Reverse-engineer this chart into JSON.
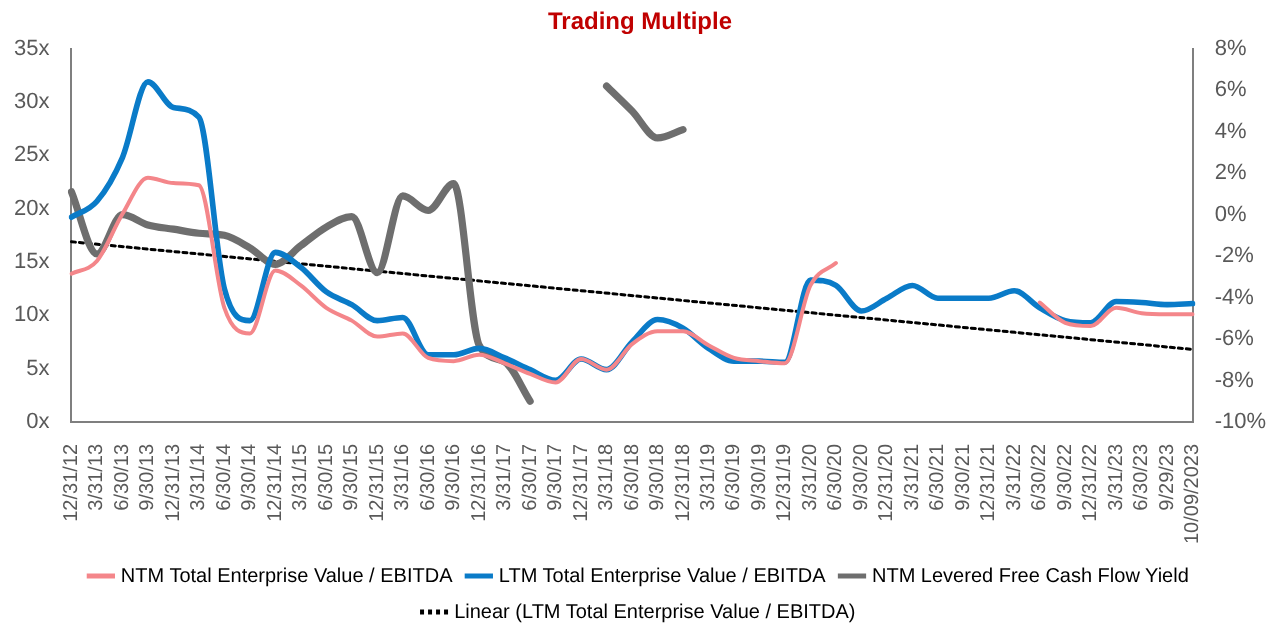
{
  "chart_data": {
    "type": "line",
    "title": "Trading Multiple",
    "categories": [
      "12/31/12",
      "3/31/13",
      "6/30/13",
      "9/30/13",
      "12/31/13",
      "3/31/14",
      "6/30/14",
      "9/30/14",
      "12/31/14",
      "3/31/15",
      "6/30/15",
      "9/30/15",
      "12/31/15",
      "3/31/16",
      "6/30/16",
      "9/30/16",
      "12/31/16",
      "3/31/17",
      "6/30/17",
      "9/30/17",
      "12/31/17",
      "3/31/18",
      "6/30/18",
      "9/30/18",
      "12/31/18",
      "3/31/19",
      "6/30/19",
      "9/30/19",
      "12/31/19",
      "3/31/20",
      "6/30/20",
      "9/30/20",
      "12/31/20",
      "3/31/21",
      "6/30/21",
      "9/30/21",
      "12/31/21",
      "3/31/22",
      "6/30/22",
      "9/30/22",
      "12/31/22",
      "3/31/23",
      "6/30/23",
      "9/29/23",
      "10/09/2023"
    ],
    "series": [
      {
        "name": "NTM Total Enterprise Value / EBITDA",
        "color": "#f4868a",
        "values": [
          13.9,
          15.1,
          19.5,
          22.9,
          22.4,
          22.2,
          10.7,
          8.3,
          14.2,
          12.8,
          10.7,
          9.5,
          8.0,
          8.3,
          6.0,
          5.7,
          6.3,
          5.5,
          4.5,
          3.7,
          5.9,
          4.9,
          7.3,
          8.5,
          8.5,
          7.2,
          6.0,
          5.7,
          5.5,
          12.8,
          14.9,
          null,
          null,
          null,
          null,
          null,
          null,
          null,
          11.2,
          9.3,
          9.0,
          10.7,
          10.2,
          10.1,
          10.1
        ]
      },
      {
        "name": "LTM Total Enterprise Value / EBITDA",
        "color": "#0a7bc8",
        "values": [
          19.2,
          20.7,
          24.8,
          31.9,
          29.5,
          28.6,
          12.5,
          9.5,
          15.9,
          14.5,
          12.2,
          11.0,
          9.5,
          9.8,
          6.3,
          6.3,
          6.9,
          6.0,
          4.9,
          3.9,
          5.9,
          4.9,
          7.5,
          9.6,
          8.8,
          6.9,
          5.7,
          5.7,
          5.6,
          13.3,
          12.8,
          10.4,
          11.6,
          12.8,
          11.6,
          11.6,
          11.6,
          12.3,
          10.7,
          9.5,
          9.3,
          11.3,
          11.2,
          11.0,
          11.1
        ]
      },
      {
        "name": "NTM Levered Free Cash Flow Yield",
        "color": "#6e6e6e",
        "axis": "y2",
        "values": [
          1.1,
          -1.9,
          0.0,
          -0.5,
          -0.7,
          -0.9,
          -1.0,
          -1.6,
          -2.4,
          -1.5,
          -0.6,
          -0.1,
          -2.8,
          0.9,
          0.2,
          1.5,
          -6.3,
          -7.1,
          -9.0,
          null,
          null,
          6.2,
          5.0,
          3.7,
          4.1,
          null,
          null,
          null,
          null,
          null,
          null,
          null,
          null,
          null,
          null,
          null,
          null,
          null,
          null,
          null,
          null,
          null,
          null,
          null,
          null
        ]
      },
      {
        "name": "Linear (LTM Total Enterprise Value / EBITDA)",
        "color": "#000000",
        "line_style": "dotted",
        "x": [
          "12/31/12",
          "10/09/2023"
        ],
        "values": [
          16.9,
          6.8
        ]
      }
    ],
    "ylim": [
      0,
      35
    ],
    "yticks": [
      {
        "value": 0,
        "label": "0x"
      },
      {
        "value": 5,
        "label": "5x"
      },
      {
        "value": 10,
        "label": "10x"
      },
      {
        "value": 15,
        "label": "15x"
      },
      {
        "value": 20,
        "label": "20x"
      },
      {
        "value": 25,
        "label": "25x"
      },
      {
        "value": 30,
        "label": "30x"
      },
      {
        "value": 35,
        "label": "35x"
      }
    ],
    "y2lim": [
      -10,
      8
    ],
    "y2ticks": [
      {
        "value": -10,
        "label": "-10%"
      },
      {
        "value": -8,
        "label": "-8%"
      },
      {
        "value": -6,
        "label": "-6%"
      },
      {
        "value": -4,
        "label": "-4%"
      },
      {
        "value": -2,
        "label": "-2%"
      },
      {
        "value": 0,
        "label": "0%"
      },
      {
        "value": 2,
        "label": "2%"
      },
      {
        "value": 4,
        "label": "4%"
      },
      {
        "value": 6,
        "label": "6%"
      },
      {
        "value": 8,
        "label": "8%"
      }
    ],
    "grid": false,
    "legend": "bottom",
    "marker": "none",
    "line_style": "solid"
  }
}
